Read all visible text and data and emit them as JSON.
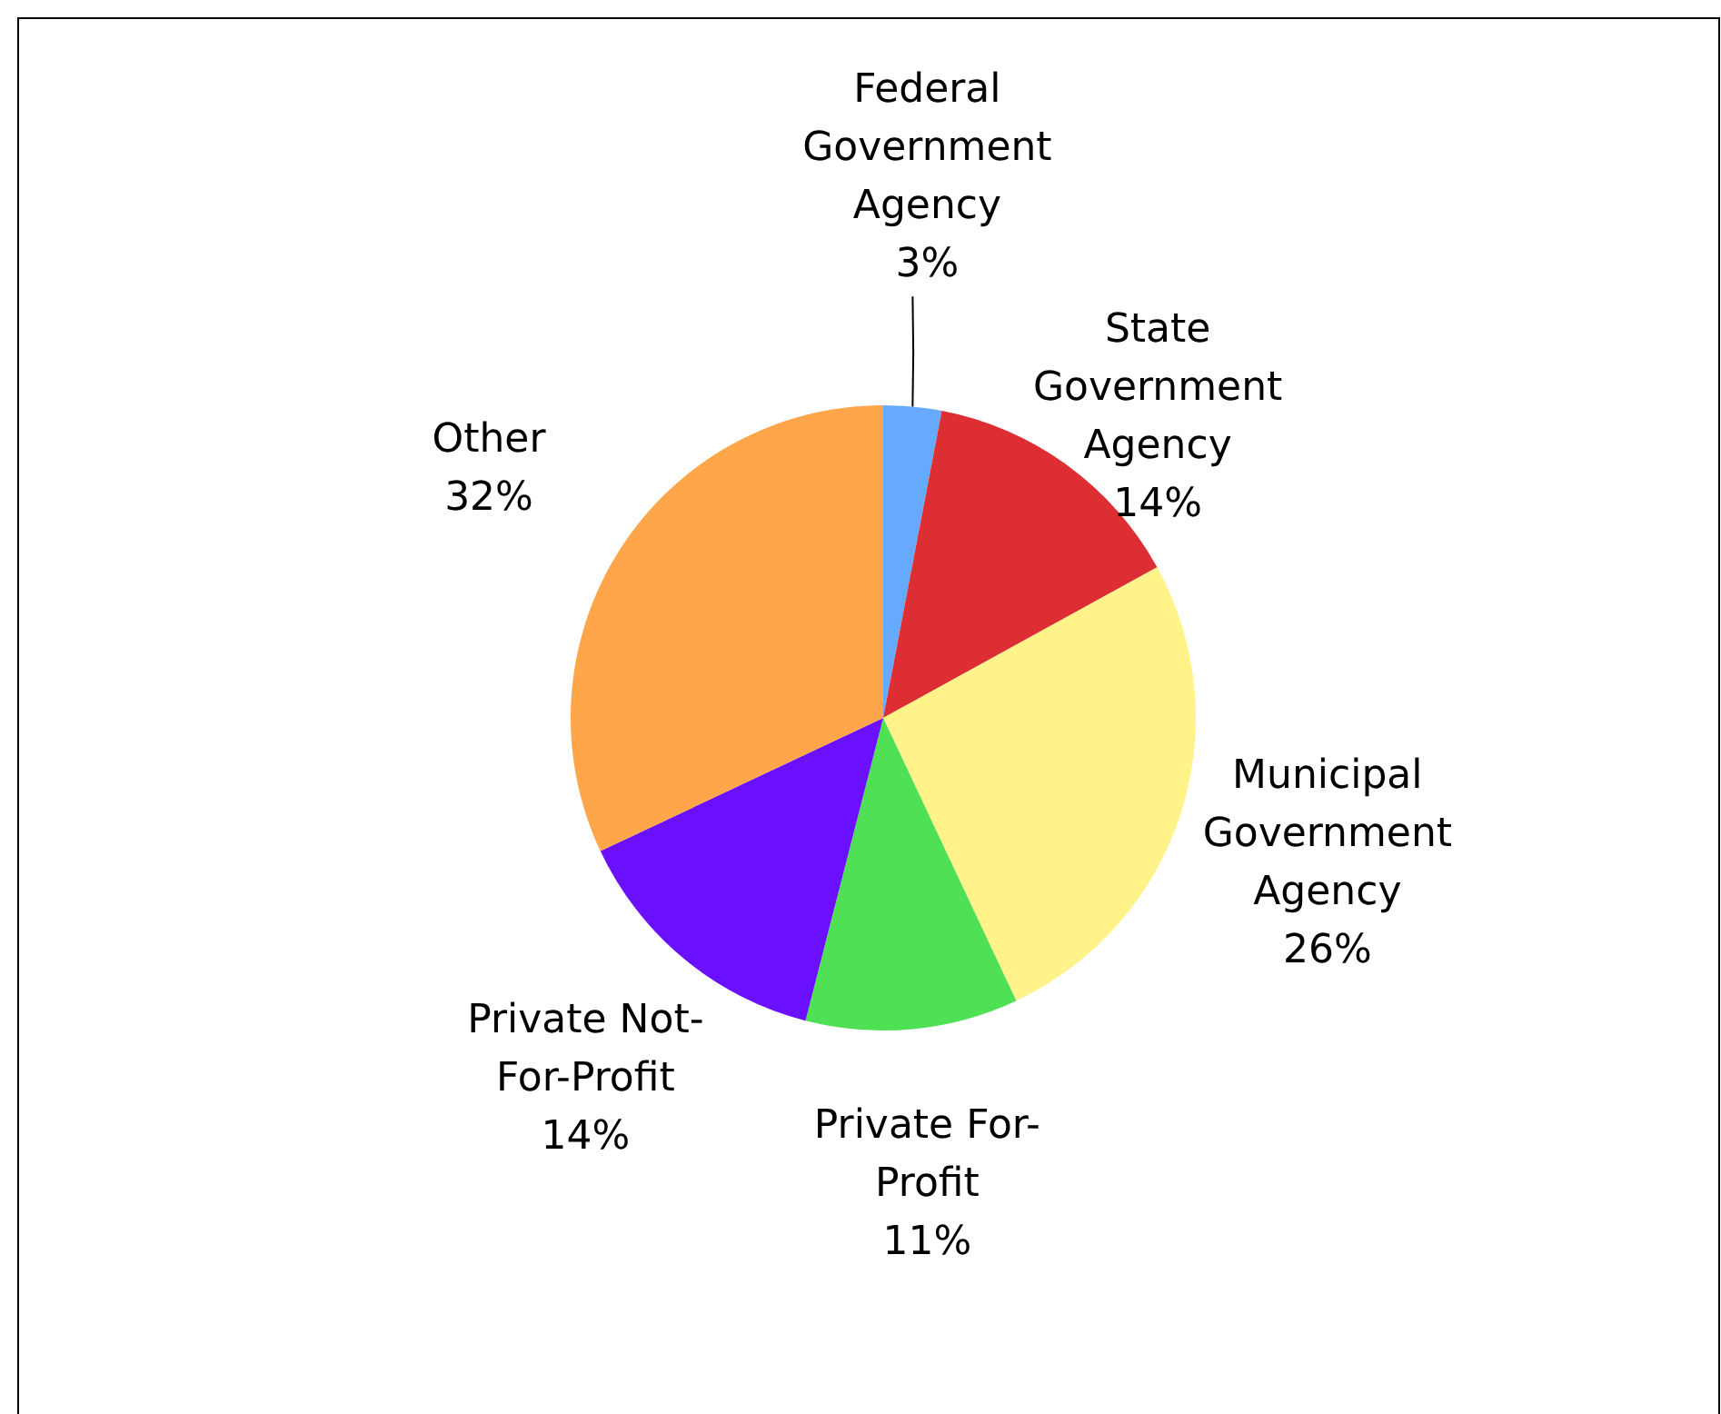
{
  "chart_data": {
    "type": "pie",
    "categories": [
      "Federal Government Agency",
      "State Government Agency",
      "Municipal Government Agency",
      "Private For-Profit",
      "Private Not-For-Profit",
      "Other"
    ],
    "values": [
      3,
      14,
      26,
      11,
      14,
      32
    ],
    "colors": [
      "#66aaff",
      "#dd2f33",
      "#fff38a",
      "#4fe055",
      "#6a10ff",
      "#ffa64a"
    ],
    "value_labels": [
      "3%",
      "14%",
      "26%",
      "11%",
      "14%",
      "32%"
    ]
  }
}
